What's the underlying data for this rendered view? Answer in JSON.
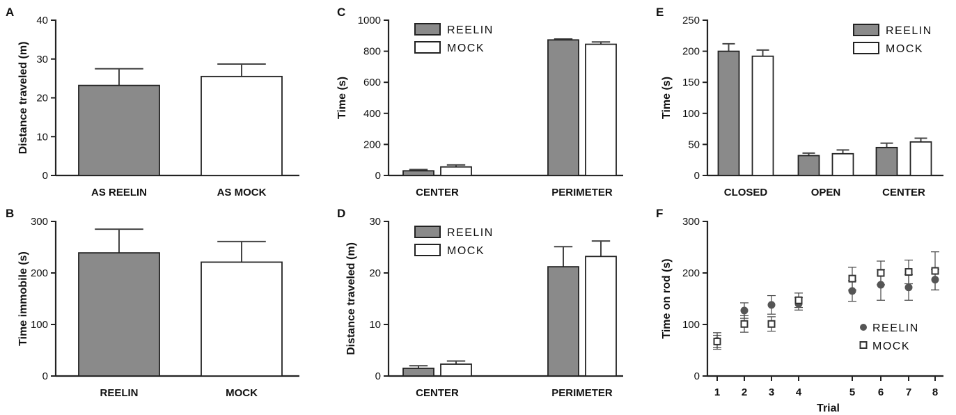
{
  "colors": {
    "reelin": "#8a8a8a",
    "mock": "#ffffff",
    "axis": "#222222",
    "error": "#444444"
  },
  "chart_data": [
    {
      "panel": "A",
      "type": "bar",
      "ylabel": "Distance traveled (m)",
      "ylim": [
        0,
        40
      ],
      "yticks": [
        0,
        10,
        20,
        30,
        40
      ],
      "categories": [
        "AS REELIN",
        "AS MOCK"
      ],
      "series": [
        {
          "values": [
            23.2,
            25.5
          ],
          "errors": [
            4.3,
            3.2
          ],
          "colors": [
            "#8a8a8a",
            "#ffffff"
          ]
        }
      ]
    },
    {
      "panel": "B",
      "type": "bar",
      "ylabel": "Time immobile (s)",
      "ylim": [
        0,
        300
      ],
      "yticks": [
        0,
        100,
        200,
        300
      ],
      "categories": [
        "REELIN",
        "MOCK"
      ],
      "series": [
        {
          "values": [
            239,
            221
          ],
          "errors": [
            46,
            40
          ],
          "colors": [
            "#8a8a8a",
            "#ffffff"
          ]
        }
      ]
    },
    {
      "panel": "C",
      "type": "bar",
      "ylabel": "Time (s)",
      "ylim": [
        0,
        1000
      ],
      "yticks": [
        0,
        200,
        400,
        600,
        800,
        1000
      ],
      "categories": [
        "CENTER",
        "PERIMETER"
      ],
      "legend": "top-left",
      "series": [
        {
          "name": "REELIN",
          "values": [
            30,
            873
          ],
          "errors": [
            8,
            6
          ]
        },
        {
          "name": "MOCK",
          "values": [
            55,
            845
          ],
          "errors": [
            13,
            15
          ]
        }
      ]
    },
    {
      "panel": "D",
      "type": "bar",
      "ylabel": "Distance traveled (m)",
      "ylim": [
        0,
        30
      ],
      "yticks": [
        0,
        10,
        20,
        30
      ],
      "categories": [
        "CENTER",
        "PERIMETER"
      ],
      "legend": "top-left",
      "series": [
        {
          "name": "REELIN",
          "values": [
            1.5,
            21.2
          ],
          "errors": [
            0.5,
            3.9
          ]
        },
        {
          "name": "MOCK",
          "values": [
            2.3,
            23.2
          ],
          "errors": [
            0.6,
            3.0
          ]
        }
      ]
    },
    {
      "panel": "E",
      "type": "bar",
      "ylabel": "Time (s)",
      "ylim": [
        0,
        250
      ],
      "yticks": [
        0,
        50,
        100,
        150,
        200,
        250
      ],
      "categories": [
        "CLOSED",
        "OPEN",
        "CENTER"
      ],
      "legend": "top-right",
      "series": [
        {
          "name": "REELIN",
          "values": [
            200,
            32,
            45
          ],
          "errors": [
            12,
            4,
            7
          ]
        },
        {
          "name": "MOCK",
          "values": [
            192,
            35,
            54
          ],
          "errors": [
            10,
            6,
            6
          ]
        }
      ]
    },
    {
      "panel": "F",
      "type": "scatter",
      "ylabel": "Time on rod (s)",
      "xlabel": "Trial",
      "ylim": [
        0,
        300
      ],
      "yticks": [
        0,
        100,
        200,
        300
      ],
      "x": [
        1,
        2,
        3,
        4,
        5,
        6,
        7,
        8
      ],
      "legend": "right",
      "series": [
        {
          "name": "REELIN",
          "values": [
            68,
            127,
            138,
            140,
            165,
            177,
            172,
            187
          ],
          "errors": [
            16,
            15,
            18,
            12,
            20,
            30,
            25,
            20
          ]
        },
        {
          "name": "MOCK",
          "values": [
            67,
            101,
            101,
            147,
            189,
            200,
            202,
            204
          ],
          "errors": [
            12,
            16,
            14,
            14,
            22,
            23,
            23,
            37
          ]
        }
      ]
    }
  ]
}
